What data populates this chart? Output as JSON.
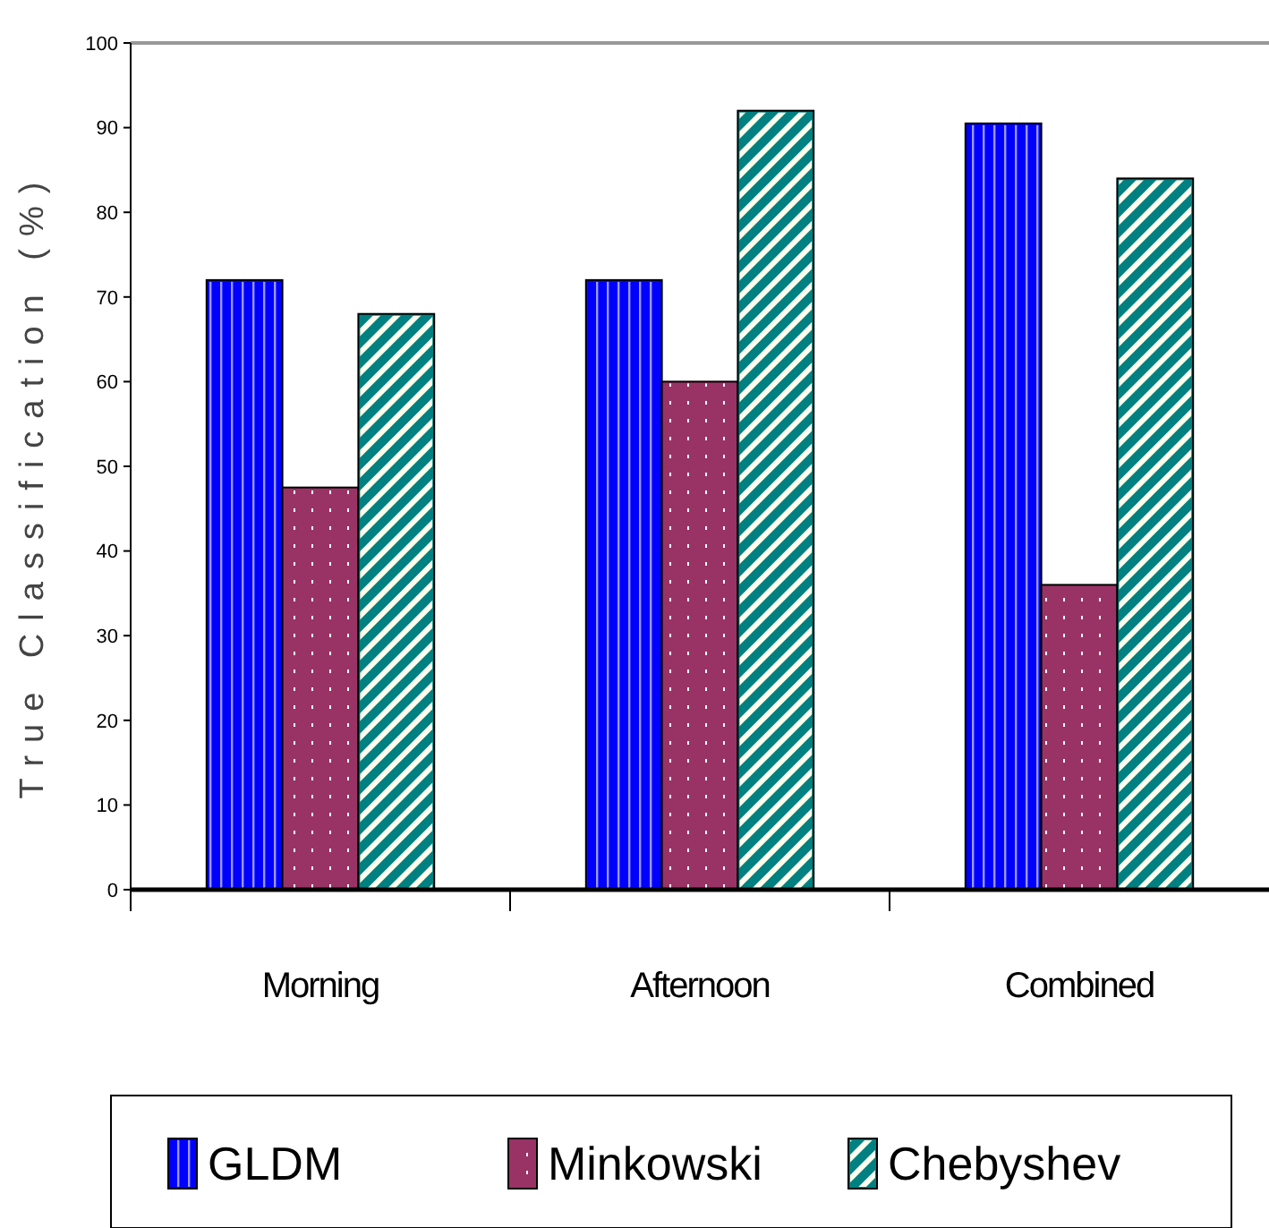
{
  "chart_data": {
    "type": "bar",
    "ylabel": "True Classification (%)",
    "categories": [
      "Morning",
      "Afternoon",
      "Combined"
    ],
    "series": [
      {
        "name": "GLDM",
        "color": "#0000ff",
        "values": [
          72,
          72,
          90.5
        ]
      },
      {
        "name": "Minkowski",
        "color": "#993366",
        "values": [
          47.5,
          60,
          36
        ]
      },
      {
        "name": "Chebyshev",
        "color": "#008080",
        "values": [
          68,
          92,
          84
        ]
      }
    ],
    "ylim": [
      0,
      100
    ],
    "yticks": [
      0,
      10,
      20,
      30,
      40,
      50,
      60,
      70,
      80,
      90,
      100
    ],
    "grid": false,
    "legend": "bottom"
  }
}
